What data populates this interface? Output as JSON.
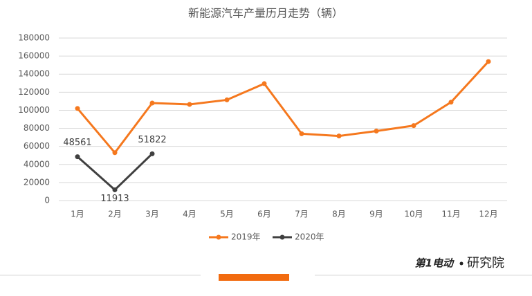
{
  "chart_data": {
    "type": "line",
    "title": "新能源汽车产量历月走势（辆）",
    "categories": [
      "1月",
      "2月",
      "3月",
      "4月",
      "5月",
      "6月",
      "7月",
      "8月",
      "9月",
      "10月",
      "11月",
      "12月"
    ],
    "series": [
      {
        "name": "2019年",
        "color": "#f5781e",
        "values": [
          102000,
          53000,
          108000,
          106500,
          111500,
          129500,
          74000,
          71500,
          77000,
          83000,
          109000,
          154000
        ]
      },
      {
        "name": "2020年",
        "color": "#404040",
        "values": [
          48561,
          11913,
          51822,
          null,
          null,
          null,
          null,
          null,
          null,
          null,
          null,
          null
        ],
        "data_labels": true
      }
    ],
    "ylim": [
      0,
      180000
    ],
    "yticks": [
      0,
      20000,
      40000,
      60000,
      80000,
      100000,
      120000,
      140000,
      160000,
      180000
    ],
    "grid": true,
    "legend": "bottom",
    "footer": {
      "logo": "第1电动",
      "text": "研究院"
    }
  }
}
